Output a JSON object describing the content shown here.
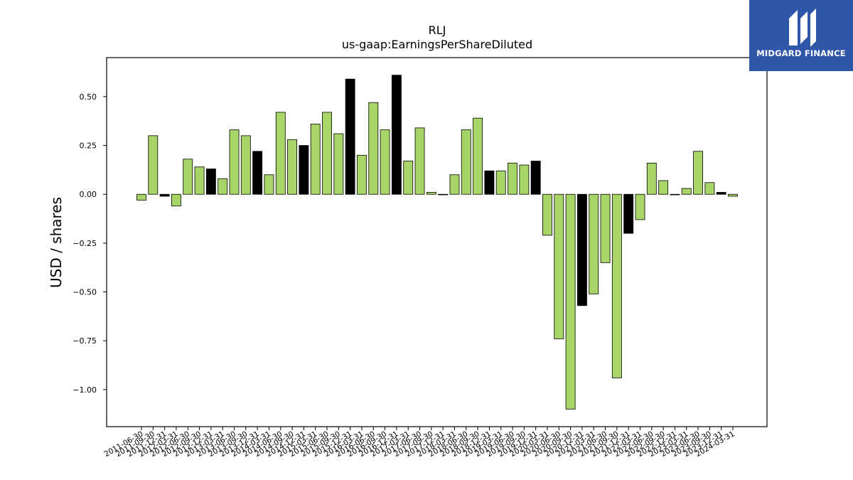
{
  "brand": {
    "name": "MIDGARD FINANCE",
    "icon": "midgard-logo-icon",
    "bg_color": "#2f56a8"
  },
  "chart_data": {
    "type": "bar",
    "title": "RLJ",
    "subtitle": "us-gaap:EarningsPerShareDiluted",
    "xlabel": "",
    "ylabel": "USD / shares",
    "ylim": [
      -1.19,
      0.7
    ],
    "yticks": [
      0.5,
      0.25,
      0.0,
      -0.25,
      -0.5,
      -0.75,
      -1.0
    ],
    "ytick_labels": [
      "0.50",
      "0.25",
      "0.00",
      "−0.25",
      "−0.50",
      "−0.75",
      "−1.00"
    ],
    "grid": false,
    "colors": {
      "quarter": "#a8d567",
      "fiscal_year": "#000000"
    },
    "bars": [
      {
        "label": "2011-06-30",
        "value": -0.03,
        "kind": "quarter"
      },
      {
        "label": "2011-09-30",
        "value": 0.3,
        "kind": "quarter"
      },
      {
        "label": "2011-12-31",
        "value": -0.01,
        "kind": "fiscal_year"
      },
      {
        "label": "2012-03-31",
        "value": -0.06,
        "kind": "quarter"
      },
      {
        "label": "2012-06-30",
        "value": 0.18,
        "kind": "quarter"
      },
      {
        "label": "2012-09-30",
        "value": 0.14,
        "kind": "quarter"
      },
      {
        "label": "2012-12-31",
        "value": 0.13,
        "kind": "fiscal_year"
      },
      {
        "label": "2013-03-31",
        "value": 0.08,
        "kind": "quarter"
      },
      {
        "label": "2013-06-30",
        "value": 0.33,
        "kind": "quarter"
      },
      {
        "label": "2013-09-30",
        "value": 0.3,
        "kind": "quarter"
      },
      {
        "label": "2013-12-31",
        "value": 0.22,
        "kind": "fiscal_year"
      },
      {
        "label": "2014-03-31",
        "value": 0.1,
        "kind": "quarter"
      },
      {
        "label": "2014-06-30",
        "value": 0.42,
        "kind": "quarter"
      },
      {
        "label": "2014-09-30",
        "value": 0.28,
        "kind": "quarter"
      },
      {
        "label": "2014-12-31",
        "value": 0.25,
        "kind": "fiscal_year"
      },
      {
        "label": "2015-03-31",
        "value": 0.36,
        "kind": "quarter"
      },
      {
        "label": "2015-06-30",
        "value": 0.42,
        "kind": "quarter"
      },
      {
        "label": "2015-09-30",
        "value": 0.31,
        "kind": "quarter"
      },
      {
        "label": "2015-12-31",
        "value": 0.59,
        "kind": "fiscal_year"
      },
      {
        "label": "2016-03-31",
        "value": 0.2,
        "kind": "quarter"
      },
      {
        "label": "2016-06-30",
        "value": 0.47,
        "kind": "quarter"
      },
      {
        "label": "2016-09-30",
        "value": 0.33,
        "kind": "quarter"
      },
      {
        "label": "2016-12-31",
        "value": 0.61,
        "kind": "fiscal_year"
      },
      {
        "label": "2017-03-31",
        "value": 0.17,
        "kind": "quarter"
      },
      {
        "label": "2017-06-30",
        "value": 0.34,
        "kind": "quarter"
      },
      {
        "label": "2017-09-30",
        "value": 0.01,
        "kind": "quarter"
      },
      {
        "label": "2017-12-31",
        "value": 0.0,
        "kind": "quarter"
      },
      {
        "label": "2018-03-31",
        "value": 0.1,
        "kind": "quarter"
      },
      {
        "label": "2018-06-30",
        "value": 0.33,
        "kind": "quarter"
      },
      {
        "label": "2018-09-30",
        "value": 0.39,
        "kind": "quarter"
      },
      {
        "label": "2018-12-31",
        "value": 0.12,
        "kind": "fiscal_year"
      },
      {
        "label": "2019-03-31",
        "value": 0.12,
        "kind": "quarter"
      },
      {
        "label": "2019-06-30",
        "value": 0.16,
        "kind": "quarter"
      },
      {
        "label": "2019-09-30",
        "value": 0.15,
        "kind": "quarter"
      },
      {
        "label": "2019-12-31",
        "value": 0.17,
        "kind": "fiscal_year"
      },
      {
        "label": "2020-03-31",
        "value": -0.21,
        "kind": "quarter"
      },
      {
        "label": "2020-06-30",
        "value": -0.74,
        "kind": "quarter"
      },
      {
        "label": "2020-09-30",
        "value": -1.1,
        "kind": "quarter"
      },
      {
        "label": "2020-12-31",
        "value": -0.57,
        "kind": "fiscal_year"
      },
      {
        "label": "2021-03-31",
        "value": -0.51,
        "kind": "quarter"
      },
      {
        "label": "2021-06-30",
        "value": -0.35,
        "kind": "quarter"
      },
      {
        "label": "2021-09-30",
        "value": -0.94,
        "kind": "quarter"
      },
      {
        "label": "2021-12-31",
        "value": -0.2,
        "kind": "fiscal_year"
      },
      {
        "label": "2022-03-31",
        "value": -0.13,
        "kind": "quarter"
      },
      {
        "label": "2022-06-30",
        "value": 0.16,
        "kind": "quarter"
      },
      {
        "label": "2022-09-30",
        "value": 0.07,
        "kind": "quarter"
      },
      {
        "label": "2022-12-31",
        "value": 0.0,
        "kind": "quarter"
      },
      {
        "label": "2023-03-31",
        "value": 0.03,
        "kind": "quarter"
      },
      {
        "label": "2023-06-30",
        "value": 0.22,
        "kind": "quarter"
      },
      {
        "label": "2023-09-30",
        "value": 0.06,
        "kind": "quarter"
      },
      {
        "label": "2023-12-31",
        "value": 0.01,
        "kind": "fiscal_year"
      },
      {
        "label": "2024-03-31",
        "value": -0.01,
        "kind": "quarter"
      }
    ]
  }
}
